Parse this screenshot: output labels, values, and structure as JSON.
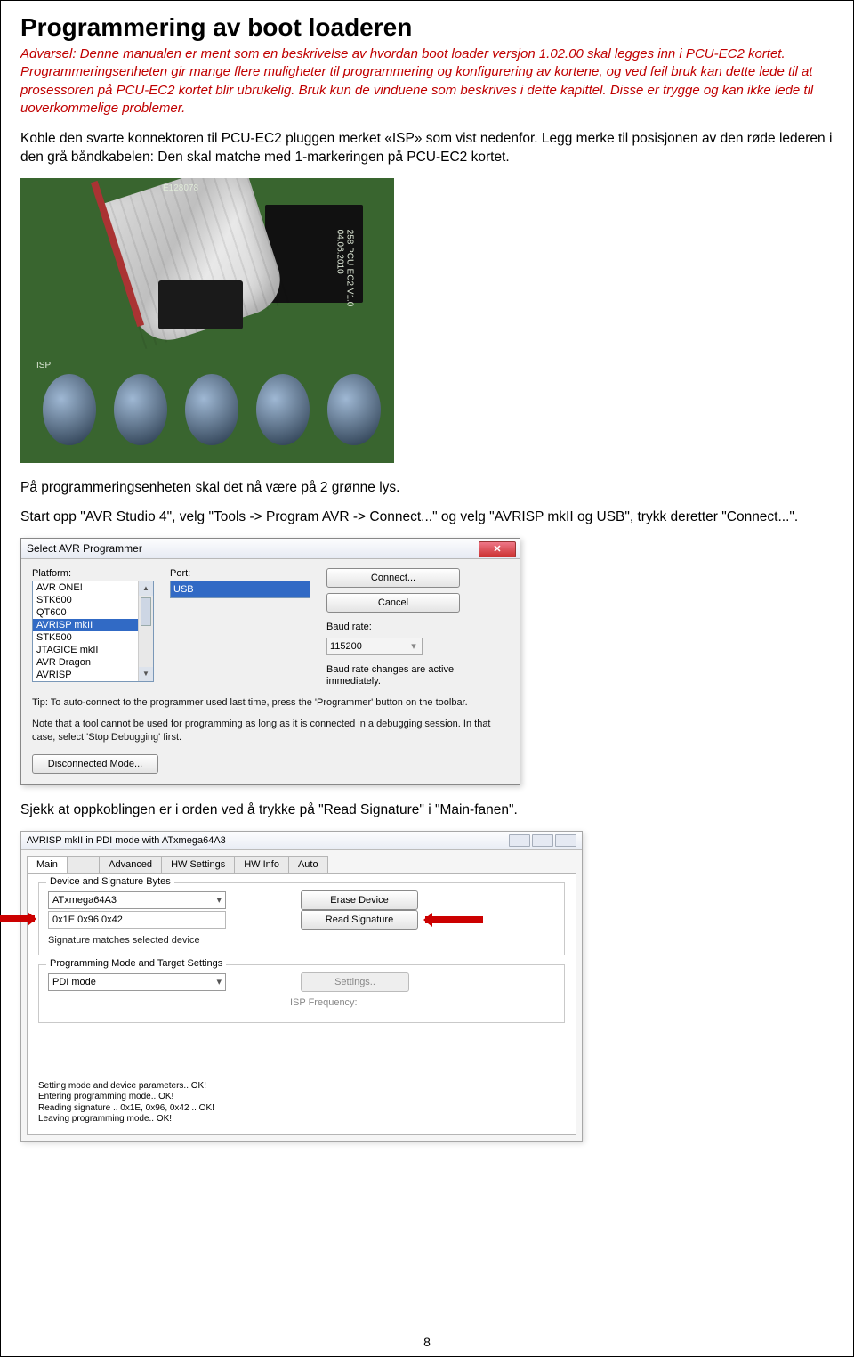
{
  "heading": "Programmering av boot loaderen",
  "warning_label": "Advarsel:",
  "warning_text": "Denne manualen er ment som en beskrivelse av hvordan boot loader versjon 1.02.00 skal legges inn i PCU-EC2 kortet. Programmeringsenheten gir mange flere muligheter til programmering og konfigurering av kortene, og ved feil bruk kan dette lede til at prosessoren på PCU-EC2 kortet blir ubrukelig. Bruk kun de vinduene som beskrives i dette kapittel. Disse er trygge og kan ikke lede til uoverkommelige problemer.",
  "para1": "Koble den svarte konnektoren til PCU-EC2 pluggen merket «ISP» som vist nedenfor. Legg merke til posisjonen av den røde lederen i den grå båndkabelen: Den skal matche med 1-markeringen på PCU-EC2 kortet.",
  "para2": "På programmeringsenheten skal det nå være på 2 grønne lys.",
  "para3": "Start opp \"AVR Studio 4\", velg \"Tools -> Program AVR -> Connect...\" og velg \"AVRISP mkII og USB\", trykk deretter \"Connect...\".",
  "para4": "Sjekk at oppkoblingen er i orden ved å trykke på \"Read Signature\" i \"Main-fanen\".",
  "page_number": "8",
  "dialog1": {
    "title": "Select AVR Programmer",
    "platform_label": "Platform:",
    "platform_items": [
      "AVR ONE!",
      "STK600",
      "QT600",
      "AVRISP mkII",
      "STK500",
      "JTAGICE mkII",
      "AVR Dragon",
      "AVRISP"
    ],
    "platform_selected_index": 3,
    "port_label": "Port:",
    "port_value": "USB",
    "connect_btn": "Connect...",
    "cancel_btn": "Cancel",
    "baud_label": "Baud rate:",
    "baud_value": "115200",
    "baud_note": "Baud rate changes are active immediately.",
    "tip1": "Tip: To auto-connect to the programmer used last time, press the 'Programmer' button on the toolbar.",
    "tip2": "Note that a tool cannot be used for programming as long as it is connected in a debugging session. In that case, select 'Stop Debugging' first.",
    "disconnected_btn": "Disconnected Mode..."
  },
  "dialog2": {
    "title": "AVRISP mkII in PDI mode with ATxmega64A3",
    "tabs": [
      "Main",
      "",
      "Advanced",
      "HW Settings",
      "HW Info",
      "Auto"
    ],
    "active_tab": 0,
    "group1_legend": "Device and Signature Bytes",
    "device_value": "ATxmega64A3",
    "erase_btn": "Erase Device",
    "sig_value": "0x1E 0x96 0x42",
    "read_sig_btn": "Read Signature",
    "sig_match": "Signature matches selected device",
    "group2_legend": "Programming Mode and Target Settings",
    "mode_value": "PDI mode",
    "settings_btn": "Settings..",
    "isp_freq_label": "ISP Frequency:",
    "log_lines": [
      "Setting mode and device parameters.. OK!",
      "Entering programming mode.. OK!",
      "Reading signature .. 0x1E, 0x96, 0x42 .. OK!",
      "Leaving programming mode.. OK!"
    ]
  }
}
